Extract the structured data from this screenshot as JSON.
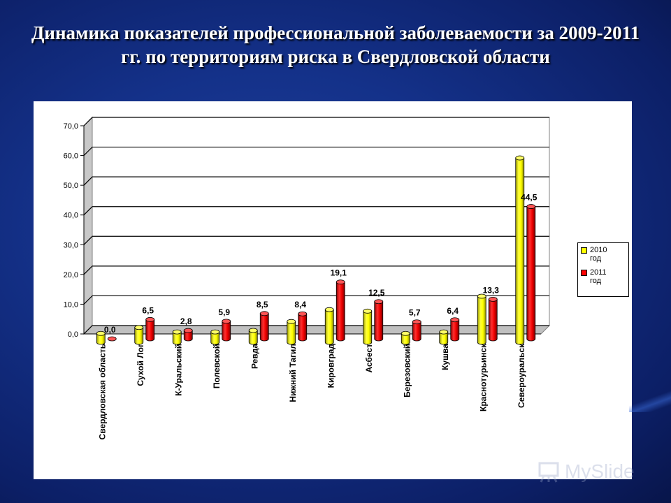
{
  "slide": {
    "title": "Динамика показателей профессиональной заболеваемости за 2009-2011 гг. по территориям риска в Свердловской области",
    "brand": "MySlide"
  },
  "chart_data": {
    "type": "bar",
    "title": "",
    "xlabel": "",
    "ylabel": "",
    "ylim": [
      0,
      70
    ],
    "yticks": [
      "0,0",
      "10,0",
      "20,0",
      "30,0",
      "40,0",
      "50,0",
      "60,0",
      "70,0"
    ],
    "grid": true,
    "legend_position": "right",
    "categories": [
      "Свердловская область",
      "Сухой Лог",
      "К-Уральский",
      "Полевской",
      "Ревда",
      "Нижний Тагил",
      "Кировград",
      "Асбест",
      "Березовский",
      "Кушва",
      "Краснотурьинск",
      "Североуральск"
    ],
    "series": [
      {
        "name": "2010 год",
        "color": "#ffff00",
        "values": [
          3.0,
          5.0,
          3.5,
          3.5,
          4.0,
          7.0,
          11.0,
          10.5,
          3.0,
          3.5,
          15.5,
          62.0
        ]
      },
      {
        "name": "2011 год",
        "color": "#ff0000",
        "values": [
          0.0,
          6.5,
          2.8,
          5.9,
          8.5,
          8.4,
          19.1,
          12.5,
          5.7,
          6.4,
          13.3,
          44.5
        ]
      }
    ],
    "data_labels": [
      "0,0",
      "6,5",
      "2,8",
      "5,9",
      "8,5",
      "8,4",
      "19,1",
      "12,5",
      "5,7",
      "6,4",
      "13,3",
      "44,5"
    ]
  }
}
